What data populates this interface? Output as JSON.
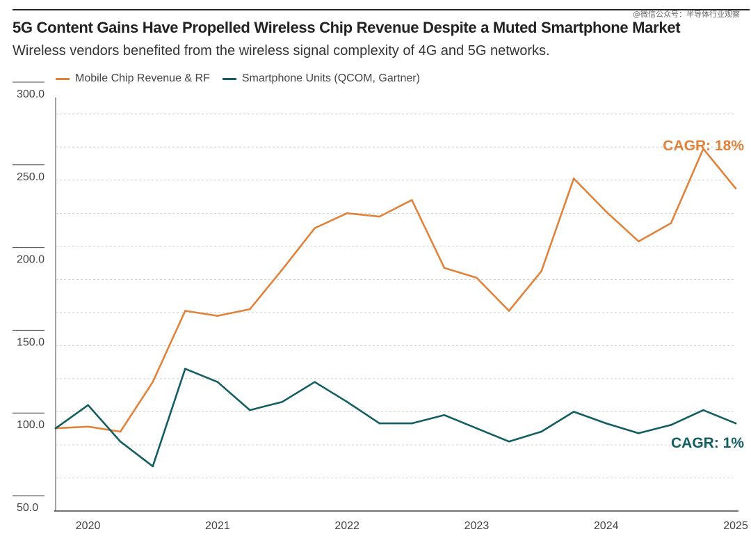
{
  "watermark": "@微信公众号：半导体行业观察",
  "header": {
    "title": "5G Content Gains Have Propelled Wireless Chip Revenue Despite a Muted Smartphone Market",
    "subtitle": "Wireless vendors benefited from the wireless signal complexity of 4G and 5G networks."
  },
  "chart_data": {
    "type": "line",
    "x": [
      "2019Q4",
      "2020Q1",
      "2020Q2",
      "2020Q3",
      "2020Q4",
      "2021Q1",
      "2021Q2",
      "2021Q3",
      "2021Q4",
      "2022Q1",
      "2022Q2",
      "2022Q3",
      "2022Q4",
      "2023Q1",
      "2023Q2",
      "2023Q3",
      "2023Q4",
      "2024Q1",
      "2024Q2",
      "2024Q3",
      "2024Q4",
      "2025Q1"
    ],
    "xticks": [
      "2020",
      "2021",
      "2022",
      "2023",
      "2024",
      "2025"
    ],
    "yticks": [
      "300.0",
      "250.0",
      "200.0",
      "150.0",
      "100.0",
      "50.0"
    ],
    "ylim": [
      50,
      300
    ],
    "grid": true,
    "legend_position": "top-left",
    "series": [
      {
        "name": "Mobile Chip Revenue & RF",
        "color": "#E0823A",
        "values": [
          100,
          101,
          98,
          128,
          171,
          168,
          172,
          196,
          221,
          230,
          228,
          238,
          197,
          191,
          171,
          195,
          251,
          231,
          213,
          224,
          269,
          245
        ],
        "annotation": "CAGR: 18%"
      },
      {
        "name": "Smartphone Units (QCOM, Gartner)",
        "color": "#135E61",
        "values": [
          100,
          114,
          92,
          77,
          136,
          128,
          111,
          116,
          128,
          116,
          103,
          103,
          108,
          100,
          92,
          98,
          110,
          103,
          97,
          102,
          111,
          103
        ],
        "annotation": "CAGR: 1%"
      }
    ]
  }
}
